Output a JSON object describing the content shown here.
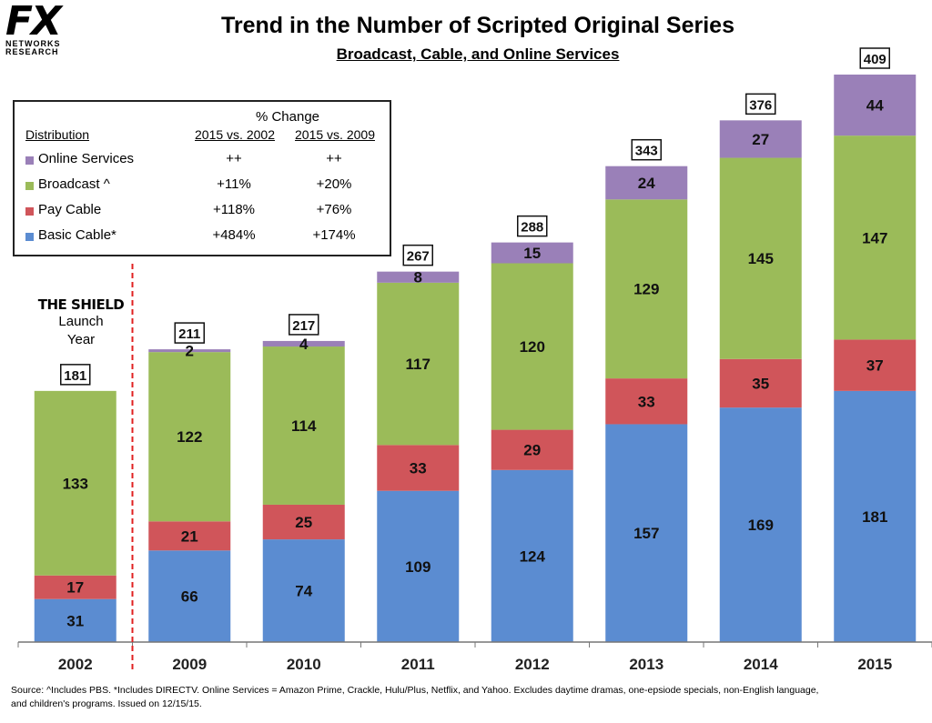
{
  "logo": {
    "main": "FX",
    "line1": "NETWORKS",
    "line2": "RESEARCH"
  },
  "header": {
    "title": "Trend in the Number of Scripted Original Series",
    "subtitle": "Broadcast, Cable, and Online Services"
  },
  "legend": {
    "pct_header": "% Change",
    "dist_header": "Distribution",
    "col1": "2015 vs. 2002",
    "col2": "2015 vs. 2009",
    "rows": [
      {
        "label": "Online Services",
        "c1": "++",
        "c2": "++",
        "color": "#9a80b8"
      },
      {
        "label": "Broadcast ^",
        "c1": "+11%",
        "c2": "+20%",
        "color": "#9bbb59"
      },
      {
        "label": "Pay Cable",
        "c1": "+118%",
        "c2": "+76%",
        "color": "#d0555a"
      },
      {
        "label": "Basic Cable*",
        "c1": "+484%",
        "c2": "+174%",
        "color": "#5b8cd1"
      }
    ]
  },
  "annotation": {
    "line1": "THE SHIELD",
    "line2": "Launch",
    "line3": "Year"
  },
  "footnote": {
    "line1": "Source:  ^Includes PBS.  *Includes DIRECTV.  Online Services = Amazon Prime, Crackle, Hulu/Plus, Netflix, and Yahoo.   Excludes daytime dramas, one-epsiode specials, non-English language,",
    "line2": "and children's programs.  Issued on 12/15/15."
  },
  "chart_data": {
    "type": "bar",
    "stacked": true,
    "title": "Trend in the Number of Scripted Original Series",
    "subtitle": "Broadcast, Cable, and Online Services",
    "categories": [
      "2002",
      "2009",
      "2010",
      "2011",
      "2012",
      "2013",
      "2014",
      "2015"
    ],
    "series": [
      {
        "name": "Basic Cable*",
        "color": "#5b8cd1",
        "values": [
          31,
          66,
          74,
          109,
          124,
          157,
          169,
          181
        ]
      },
      {
        "name": "Pay Cable",
        "color": "#d0555a",
        "values": [
          17,
          21,
          25,
          33,
          29,
          33,
          35,
          37
        ]
      },
      {
        "name": "Broadcast ^",
        "color": "#9bbb59",
        "values": [
          133,
          122,
          114,
          117,
          120,
          129,
          145,
          147
        ]
      },
      {
        "name": "Online Services",
        "color": "#9a80b8",
        "values": [
          0,
          2,
          4,
          8,
          15,
          24,
          27,
          44
        ]
      }
    ],
    "totals": [
      181,
      211,
      217,
      267,
      288,
      343,
      376,
      409
    ],
    "ylim": [
      0,
      409
    ],
    "xlabel": "",
    "ylabel": "",
    "grid": false,
    "divider_after": "2002"
  }
}
